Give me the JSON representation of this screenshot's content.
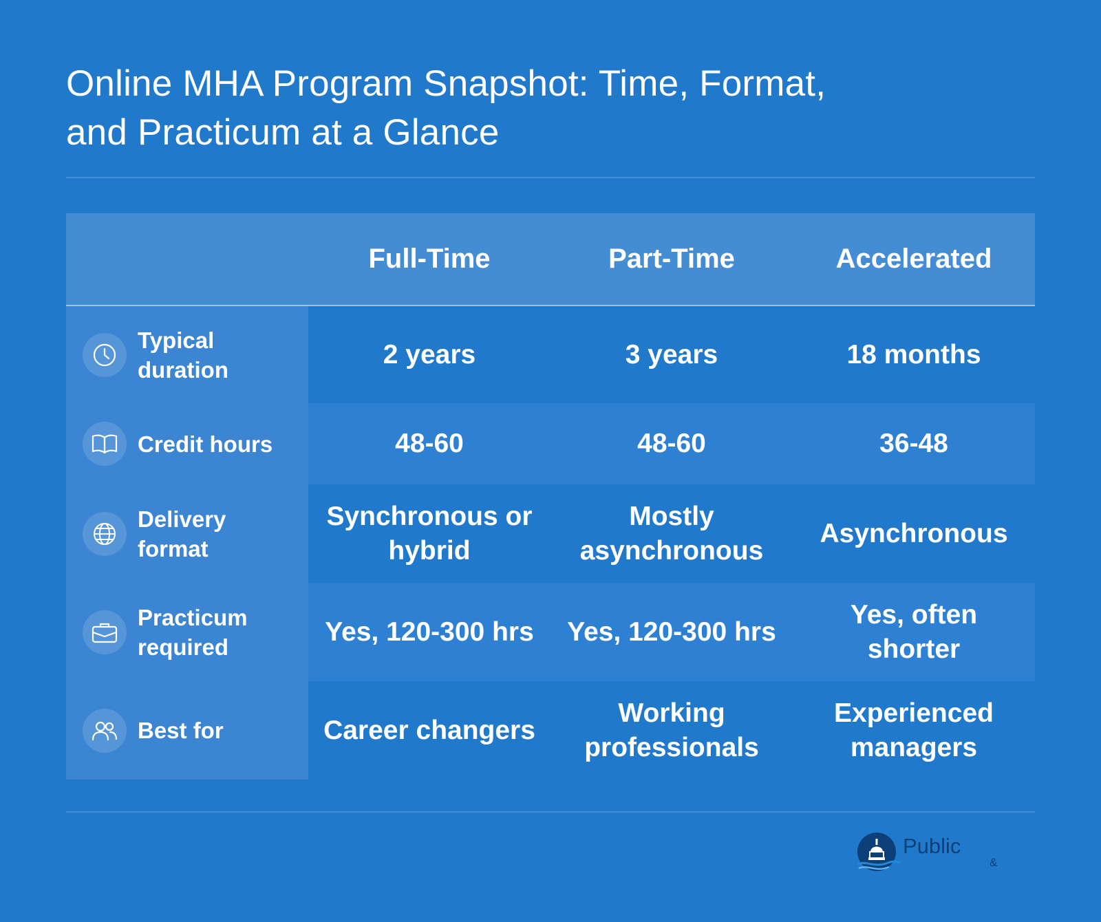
{
  "title_line1": "Online MHA Program Snapshot: Time, Format,",
  "title_line2": "and Practicum at a Glance",
  "columns": [
    "Full-Time",
    "Part-Time",
    "Accelerated"
  ],
  "rows": [
    {
      "icon": "clock-icon",
      "label": "Typical duration",
      "values": [
        "2 years",
        "3 years",
        "18 months"
      ]
    },
    {
      "icon": "book-icon",
      "label": "Credit hours",
      "values": [
        "48-60",
        "48-60",
        "36-48"
      ]
    },
    {
      "icon": "globe-icon",
      "label": "Delivery format",
      "values": [
        "Synchronous or hybrid",
        "Mostly asynchronous",
        "Asynchronous"
      ]
    },
    {
      "icon": "briefcase-icon",
      "label": "Practicum required",
      "values": [
        "Yes, 120-300 hrs",
        "Yes, 120-300 hrs",
        "Yes, often shorter"
      ]
    },
    {
      "icon": "people-icon",
      "label": "Best for",
      "values": [
        "Career changers",
        "Working professionals",
        "Experienced managers"
      ]
    }
  ],
  "logo": {
    "word": "Public",
    "amp": "&"
  },
  "colors": {
    "background": "#2179CC",
    "header_row": "#448DD5",
    "label_column": "#3B85D2",
    "row_alt": "#2E81D2"
  }
}
